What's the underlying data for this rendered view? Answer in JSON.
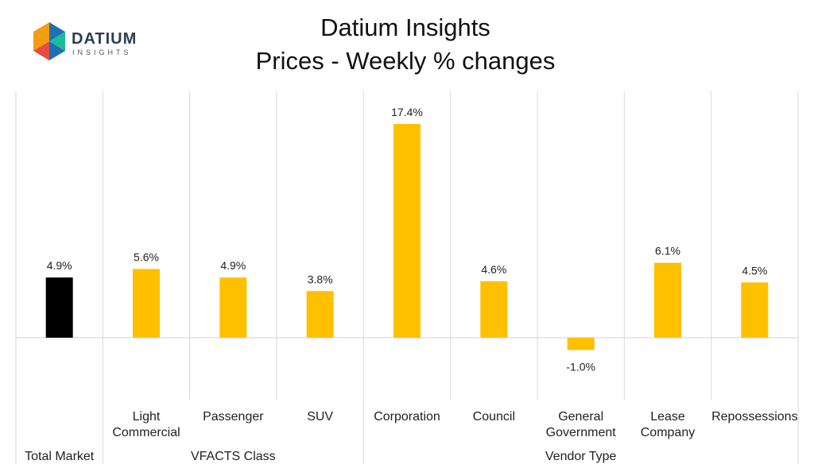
{
  "logo": {
    "word": "DATIUM",
    "sub": "INSIGHTS"
  },
  "colors": {
    "total": "#000000",
    "segment": "#FFC000",
    "grid": "#d9d9d9",
    "logo_blue": "#1f6fb5",
    "logo_orange": "#f39c12",
    "logo_red": "#e74c3c",
    "logo_teal": "#1abc9c"
  },
  "chart_data": {
    "type": "bar",
    "title": "Datium Insights",
    "subtitle": "Prices - Weekly % changes",
    "xlabel": "",
    "ylabel": "",
    "ylim": [
      -5,
      20
    ],
    "grid": false,
    "categories": [
      [
        "Total Market"
      ],
      [
        "Light",
        "Commercial"
      ],
      [
        "Passenger"
      ],
      [
        "SUV"
      ],
      [
        "Corporation"
      ],
      [
        "Council"
      ],
      [
        "General",
        "Government"
      ],
      [
        "Lease",
        "Company"
      ],
      [
        "Repossessions"
      ]
    ],
    "values": [
      4.9,
      5.6,
      4.9,
      3.8,
      17.4,
      4.6,
      -1.0,
      6.1,
      4.5
    ],
    "data_labels": [
      "4.9%",
      "5.6%",
      "4.9%",
      "3.8%",
      "17.4%",
      "4.6%",
      "-1.0%",
      "6.1%",
      "4.5%"
    ],
    "groups": [
      {
        "label": "",
        "span": [
          0,
          0
        ]
      },
      {
        "label": "VFACTS Class",
        "span": [
          1,
          3
        ]
      },
      {
        "label": "Vendor Type",
        "span": [
          4,
          8
        ]
      }
    ]
  }
}
